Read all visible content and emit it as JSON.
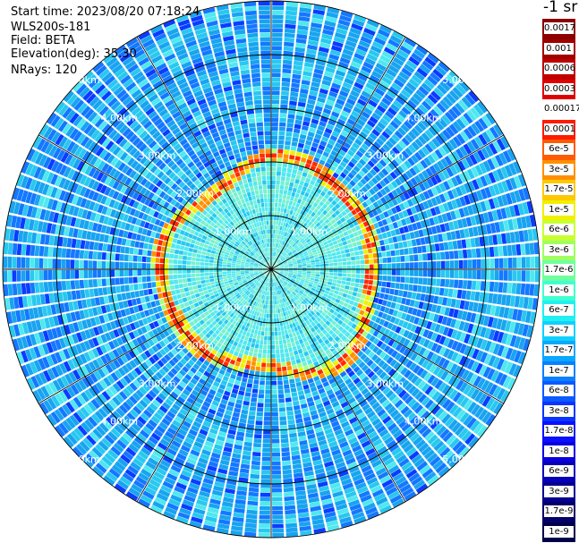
{
  "info": {
    "start_time": "Start time: 2023/08/20 07:18:24",
    "instrument": "WLS200s-181",
    "field": "Field: BETA",
    "elevation": "Elevation(deg): 35.30",
    "nrays": "NRays: 120"
  },
  "colorbar": {
    "unit_label": "-1 sr",
    "ticks": [
      "0.0017",
      "0.001",
      "0.0006",
      "0.0003",
      "0.00017",
      "0.0001",
      "6e-5",
      "3e-5",
      "1.7e-5",
      "1e-5",
      "6e-6",
      "3e-6",
      "1.7e-6",
      "1e-6",
      "6e-7",
      "3e-7",
      "1.7e-7",
      "1e-7",
      "6e-8",
      "3e-8",
      "1.7e-8",
      "1e-8",
      "6e-9",
      "3e-9",
      "1.7e-9",
      "1e-9"
    ],
    "colors": [
      "#8b0000",
      "#a00000",
      "#c00000",
      "#e00000",
      "#ffffff",
      "#ff1a00",
      "#ff5a00",
      "#ff9000",
      "#ffc800",
      "#f0f000",
      "#c8ff30",
      "#a0ff60",
      "#70ffa0",
      "#40ffd0",
      "#20f0f0",
      "#10d0ff",
      "#0aa8ff",
      "#0a80ff",
      "#0a5aff",
      "#0a34ff",
      "#0a10ff",
      "#0a00e0",
      "#0800b8",
      "#060090",
      "#04006a",
      "#020048"
    ]
  },
  "range_rings": {
    "labels": [
      "1.00km",
      "2.00km",
      "3.00km",
      "4.00km",
      "5.00km"
    ]
  },
  "scan": {
    "nrays": 120,
    "max_range_km": 5.0
  }
}
